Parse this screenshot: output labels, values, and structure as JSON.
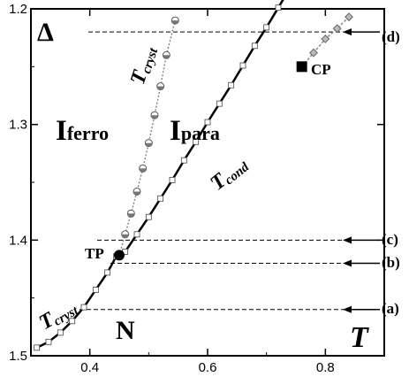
{
  "chart_data": {
    "type": "line",
    "xlim": [
      0.3,
      0.9
    ],
    "ylim": [
      1.2,
      1.5
    ],
    "y_inverted": true,
    "grid": false,
    "x_ticks": [
      0.4,
      0.6,
      0.8
    ],
    "x_tick_labels": [
      "0.4",
      "0.6",
      "0.8"
    ],
    "y_ticks": [
      1.2,
      1.3,
      1.4,
      1.5
    ],
    "y_tick_labels": [
      "1.2",
      "1.3",
      "1.4",
      "1.5"
    ],
    "axis_symbols": {
      "y": "Δ",
      "x": "T"
    },
    "series": [
      {
        "name": "T_cond",
        "style": "solid-black-with-open-squares",
        "points": [
          [
            0.31,
            1.493
          ],
          [
            0.33,
            1.488
          ],
          [
            0.35,
            1.48
          ],
          [
            0.37,
            1.47
          ],
          [
            0.39,
            1.458
          ],
          [
            0.41,
            1.443
          ],
          [
            0.43,
            1.428
          ],
          [
            0.445,
            1.414
          ],
          [
            0.46,
            1.41
          ],
          [
            0.48,
            1.395
          ],
          [
            0.5,
            1.38
          ],
          [
            0.52,
            1.364
          ],
          [
            0.54,
            1.348
          ],
          [
            0.56,
            1.331
          ],
          [
            0.58,
            1.315
          ],
          [
            0.6,
            1.298
          ],
          [
            0.62,
            1.282
          ],
          [
            0.64,
            1.266
          ],
          [
            0.66,
            1.249
          ],
          [
            0.68,
            1.232
          ],
          [
            0.7,
            1.216
          ],
          [
            0.72,
            1.199
          ],
          [
            0.74,
            1.182
          ],
          [
            0.76,
            1.165
          ]
        ]
      },
      {
        "name": "T_cryst",
        "style": "dotted-gray-with-half-filled-circles",
        "points": [
          [
            0.45,
            1.413
          ],
          [
            0.46,
            1.395
          ],
          [
            0.47,
            1.377
          ],
          [
            0.48,
            1.358
          ],
          [
            0.49,
            1.338
          ],
          [
            0.5,
            1.316
          ],
          [
            0.51,
            1.292
          ],
          [
            0.52,
            1.267
          ],
          [
            0.53,
            1.24
          ],
          [
            0.545,
            1.21
          ]
        ]
      },
      {
        "name": "continuation",
        "style": "dotted-gray-with-diamonds",
        "points": [
          [
            0.76,
            1.25
          ],
          [
            0.78,
            1.238
          ],
          [
            0.8,
            1.226
          ],
          [
            0.82,
            1.217
          ],
          [
            0.84,
            1.207
          ]
        ]
      }
    ],
    "markers": [
      {
        "label": "TP",
        "x": 0.45,
        "y": 1.413,
        "shape": "filled-circle"
      },
      {
        "label": "CP",
        "x": 0.76,
        "y": 1.25,
        "shape": "filled-square"
      }
    ],
    "reference_lines": [
      {
        "label": "(d)",
        "y": 1.22
      },
      {
        "label": "(c)",
        "y": 1.4
      },
      {
        "label": "(b)",
        "y": 1.42
      },
      {
        "label": "(a)",
        "y": 1.46
      }
    ],
    "region_labels": [
      {
        "main": "I",
        "sub": "ferro"
      },
      {
        "main": "I",
        "sub": "para"
      },
      {
        "main": "N",
        "sub": ""
      }
    ],
    "curve_labels": [
      {
        "main": "T",
        "sub": "cryst"
      },
      {
        "main": "T",
        "sub": "cond"
      },
      {
        "main": "T",
        "sub": "cryst"
      }
    ]
  }
}
